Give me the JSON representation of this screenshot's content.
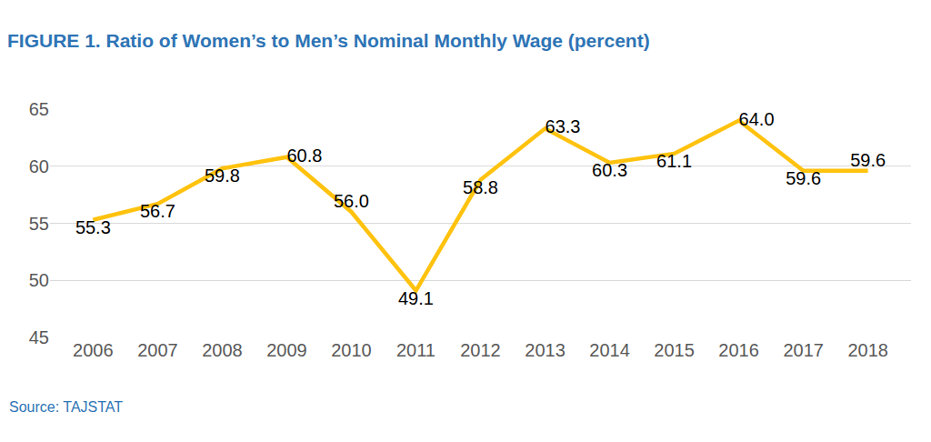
{
  "chart_data": {
    "type": "line",
    "title": "FIGURE 1. Ratio of Women’s to Men’s Nominal Monthly Wage (percent)",
    "source": "Source: TAJSTAT",
    "categories": [
      "2006",
      "2007",
      "2008",
      "2009",
      "2010",
      "2011",
      "2012",
      "2013",
      "2014",
      "2015",
      "2016",
      "2017",
      "2018"
    ],
    "values": [
      55.3,
      56.7,
      59.8,
      60.8,
      56.0,
      49.1,
      58.8,
      63.3,
      60.3,
      61.1,
      64.0,
      59.6,
      59.6
    ],
    "value_labels": [
      "55.3",
      "56.7",
      "59.8",
      "60.8",
      "56.0",
      "49.1",
      "58.8",
      "63.3",
      "60.3",
      "61.1",
      "64.0",
      "59.6",
      "59.6"
    ],
    "color": "#ffc20e",
    "ylim": [
      45,
      65
    ],
    "yticks": [
      45,
      50,
      55,
      60,
      65
    ],
    "grid": true,
    "data_labels": true
  }
}
